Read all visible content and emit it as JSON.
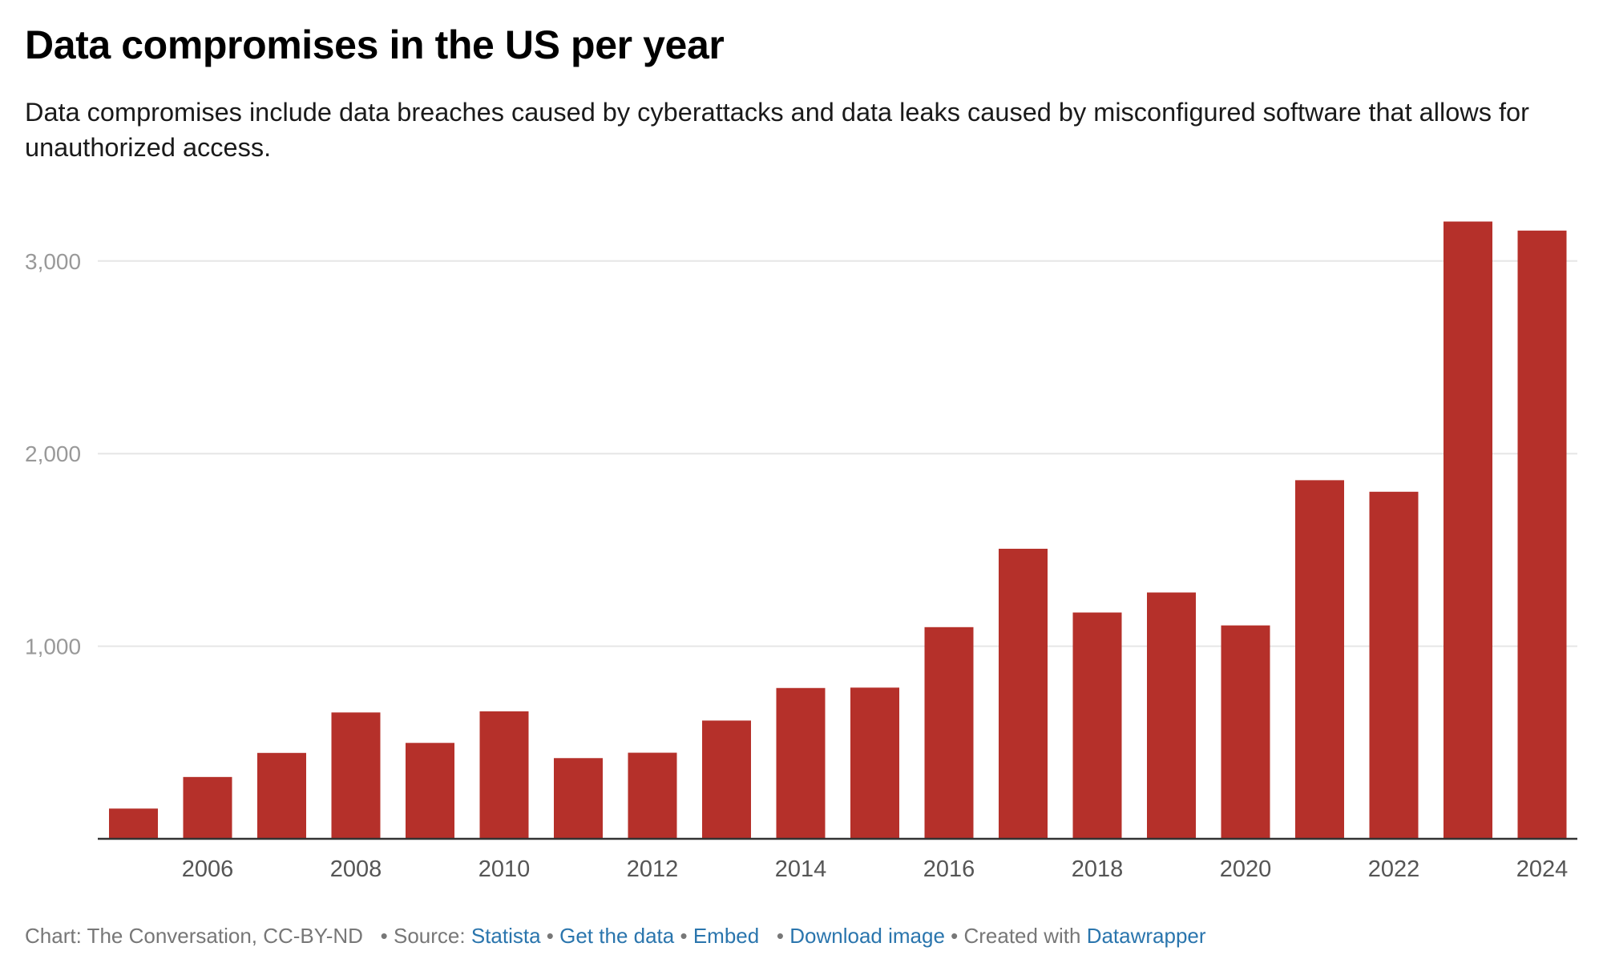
{
  "header": {
    "title": "Data compromises in the US per year",
    "subtitle": "Data compromises include data breaches caused by cyberattacks and data leaks caused by misconfigured software that allows for unauthorized access."
  },
  "chart_data": {
    "type": "bar",
    "title": "Data compromises in the US per year",
    "subtitle": "Data compromises include data breaches caused by cyberattacks and data leaks caused by misconfigured software that allows for unauthorized access.",
    "xlabel": "",
    "ylabel": "",
    "categories": [
      "2005",
      "2006",
      "2007",
      "2008",
      "2009",
      "2010",
      "2011",
      "2012",
      "2013",
      "2014",
      "2015",
      "2016",
      "2017",
      "2018",
      "2019",
      "2020",
      "2021",
      "2022",
      "2023",
      "2024"
    ],
    "x_tick_labels": [
      "2006",
      "2008",
      "2010",
      "2012",
      "2014",
      "2016",
      "2018",
      "2020",
      "2022",
      "2024"
    ],
    "values": [
      157,
      321,
      446,
      656,
      498,
      662,
      419,
      447,
      614,
      783,
      785,
      1099,
      1506,
      1175,
      1279,
      1108,
      1862,
      1802,
      3205,
      3158
    ],
    "ylim": [
      0,
      3300
    ],
    "y_ticks": [
      1000,
      2000,
      3000
    ],
    "y_tick_labels": [
      "1,000",
      "2,000",
      "3,000"
    ],
    "grid": true,
    "bar_color": "#b5302a"
  },
  "footer": {
    "credit": "Chart: The Conversation, CC-BY-ND",
    "source_prefix": "• Source:",
    "source_link": "Statista",
    "sep1": "•",
    "get_data": "Get the data",
    "sep2": "•",
    "embed": "Embed",
    "sep3": "•",
    "download": "Download image",
    "created_prefix": "• Created with",
    "datawrapper": "Datawrapper"
  },
  "colors": {
    "bar": "#b5302a",
    "link": "#2a75ad",
    "footer_text": "#777777",
    "axis_label": "#999999",
    "x_tick_label": "#555555",
    "grid": "#e6e6e6"
  }
}
